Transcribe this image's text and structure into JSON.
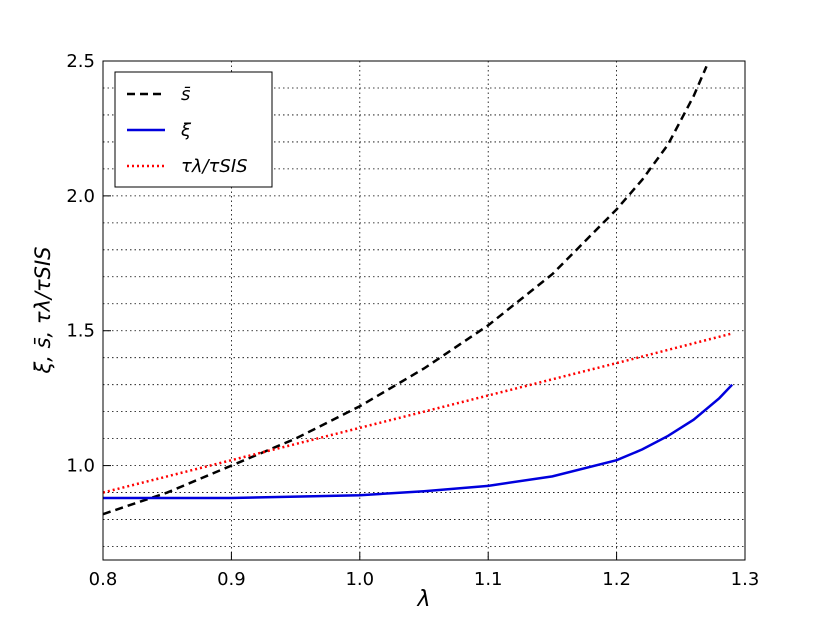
{
  "chart_data": {
    "type": "line",
    "xlabel": "λ",
    "ylabel": "ξ, s̄, τλ/τSIS",
    "xlim": [
      0.8,
      1.3
    ],
    "ylim": [
      0.65,
      2.5
    ],
    "xticks": [
      0.8,
      0.9,
      {
        "value": 1,
        "label": "1.0"
      },
      1.1,
      1.2,
      1.3
    ],
    "yticks": [
      {
        "value": 1,
        "label": "1.0"
      },
      1.5,
      {
        "value": 2,
        "label": "2.0"
      },
      2.5
    ],
    "yminorticks": [
      0.7,
      0.8,
      0.9,
      1.1,
      1.2,
      1.3,
      1.4,
      1.6,
      1.7,
      1.8,
      1.9,
      2.1,
      2.2,
      2.3,
      2.4
    ],
    "grid": true,
    "legend": "upper left",
    "series": [
      {
        "name": "s̄",
        "color": "#000000",
        "style": "dashed",
        "x": [
          0.8,
          0.85,
          0.9,
          0.95,
          1.0,
          1.05,
          1.1,
          1.15,
          1.2,
          1.22,
          1.24,
          1.26,
          1.27
        ],
        "values": [
          0.82,
          0.9,
          1.0,
          1.1,
          1.22,
          1.36,
          1.52,
          1.71,
          1.95,
          2.06,
          2.19,
          2.37,
          2.48
        ]
      },
      {
        "name": "ξ",
        "color": "#0000dd",
        "style": "solid",
        "x": [
          0.8,
          0.85,
          0.9,
          0.95,
          1.0,
          1.05,
          1.1,
          1.15,
          1.2,
          1.22,
          1.24,
          1.26,
          1.28,
          1.29
        ],
        "values": [
          0.88,
          0.88,
          0.88,
          0.885,
          0.89,
          0.905,
          0.925,
          0.96,
          1.02,
          1.06,
          1.11,
          1.17,
          1.25,
          1.3
        ]
      },
      {
        "name": "τλ/τSIS",
        "color": "#ff0000",
        "style": "dotted",
        "x": [
          0.8,
          0.9,
          1.0,
          1.1,
          1.2,
          1.29
        ],
        "values": [
          0.9,
          1.02,
          1.14,
          1.26,
          1.38,
          1.49
        ]
      }
    ]
  }
}
